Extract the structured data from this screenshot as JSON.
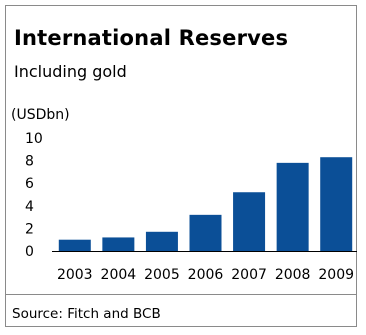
{
  "chart_data": {
    "type": "bar",
    "title": "International Reserves",
    "subtitle": "Including gold",
    "ylabel": "(USDbn)",
    "xlabel": "",
    "categories": [
      "2003",
      "2004",
      "2005",
      "2006",
      "2007",
      "2008",
      "2009"
    ],
    "values": [
      1.0,
      1.2,
      1.7,
      3.2,
      5.2,
      7.8,
      8.3
    ],
    "ylim": [
      0,
      10
    ],
    "yticks": [
      "0",
      "2",
      "4",
      "6",
      "8",
      "10"
    ],
    "grid": false,
    "legend": "none",
    "bar_color": "#0b4f97",
    "source": "Source: Fitch and BCB"
  }
}
